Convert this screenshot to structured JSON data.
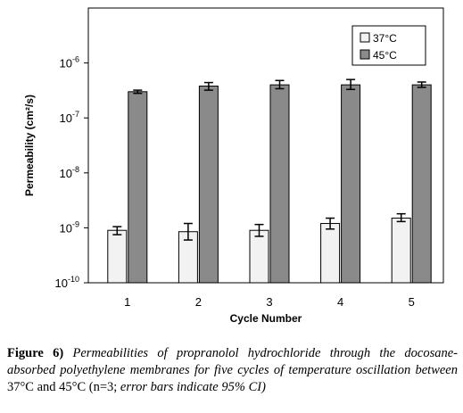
{
  "chart_data": {
    "type": "bar",
    "categories": [
      "1",
      "2",
      "3",
      "4",
      "5"
    ],
    "xlabel": "Cycle Number",
    "ylabel": "Permeability (cm²/s)",
    "yscale": "log",
    "ylim": [
      1e-10,
      1e-05
    ],
    "yticks": [
      {
        "value": 1e-10,
        "base": "10",
        "exp": "-10"
      },
      {
        "value": 1e-09,
        "base": "10",
        "exp": "-9"
      },
      {
        "value": 1e-08,
        "base": "10",
        "exp": "-8"
      },
      {
        "value": 1e-07,
        "base": "10",
        "exp": "-7"
      },
      {
        "value": 1e-06,
        "base": "10",
        "exp": "-6"
      }
    ],
    "series": [
      {
        "name": "37°C",
        "color": "#f2f2f2",
        "values": [
          9e-10,
          8.5e-10,
          9e-10,
          1.2e-09,
          1.5e-09
        ],
        "err_low": [
          7.5e-10,
          6e-10,
          7e-10,
          9.5e-10,
          1.3e-09
        ],
        "err_high": [
          1.05e-09,
          1.2e-09,
          1.15e-09,
          1.5e-09,
          1.8e-09
        ]
      },
      {
        "name": "45°C",
        "color": "#8a8a8a",
        "values": [
          3e-07,
          3.8e-07,
          4e-07,
          4e-07,
          4e-07
        ],
        "err_low": [
          2.8e-07,
          3.2e-07,
          3.4e-07,
          3.3e-07,
          3.6e-07
        ],
        "err_high": [
          3.2e-07,
          4.4e-07,
          4.8e-07,
          5e-07,
          4.5e-07
        ]
      }
    ],
    "legend_position": "top-right",
    "grid": false
  },
  "caption": {
    "label": "Figure 6)",
    "text": " Permeabilities of propranolol hydrochloride through the docosane-absorbed polyethylene membranes for five cycles of temperature oscillation between",
    "rest": " 37°C and 45°C (n=3;",
    "tail": " error bars indicate 95% CI)"
  }
}
